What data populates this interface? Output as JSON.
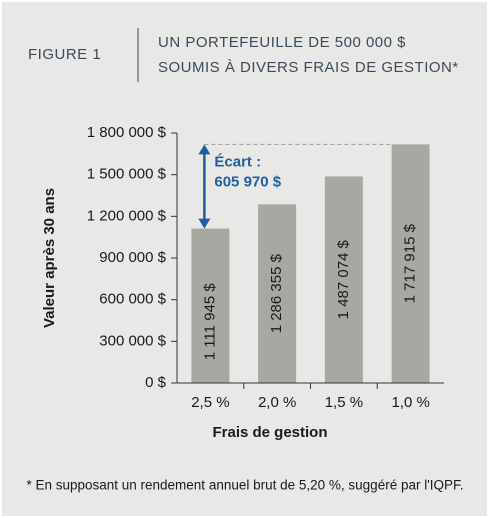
{
  "header": {
    "figure": "FIGURE 1",
    "title_lines": [
      "UN PORTEFEUILLE DE 500 000 $",
      "SOUMIS À DIVERS FRAIS DE GESTION*"
    ]
  },
  "chart_data": {
    "type": "bar",
    "x_label": "Frais de gestion",
    "y_label": "Valeur après 30 ans",
    "categories": [
      "2,5 %",
      "2,0 %",
      "1,5 %",
      "1,0 %"
    ],
    "values": [
      1111945,
      1286355,
      1487074,
      1717915
    ],
    "value_labels": [
      "1 111 945 $",
      "1 286 355 $",
      "1 487 074 $",
      "1 717 915 $"
    ],
    "color": "#a8a7a2",
    "ylim": [
      0,
      1800000
    ],
    "yticks": [
      {
        "value": 0,
        "label": "0 $"
      },
      {
        "value": 300000,
        "label": "300 000 $"
      },
      {
        "value": 600000,
        "label": "600 000 $"
      },
      {
        "value": 900000,
        "label": "900 000 $"
      },
      {
        "value": 1200000,
        "label": "1 200 000 $"
      },
      {
        "value": 1500000,
        "label": "1 500 000 $"
      },
      {
        "value": 1800000,
        "label": "1 800 000 $"
      }
    ],
    "annotation": [
      "Écart :",
      "605 970 $"
    ],
    "annotation_color": "#1f5fa0"
  },
  "footnote": "* En supposant un rendement annuel brut de 5,20 %, suggéré par l'IQPF."
}
